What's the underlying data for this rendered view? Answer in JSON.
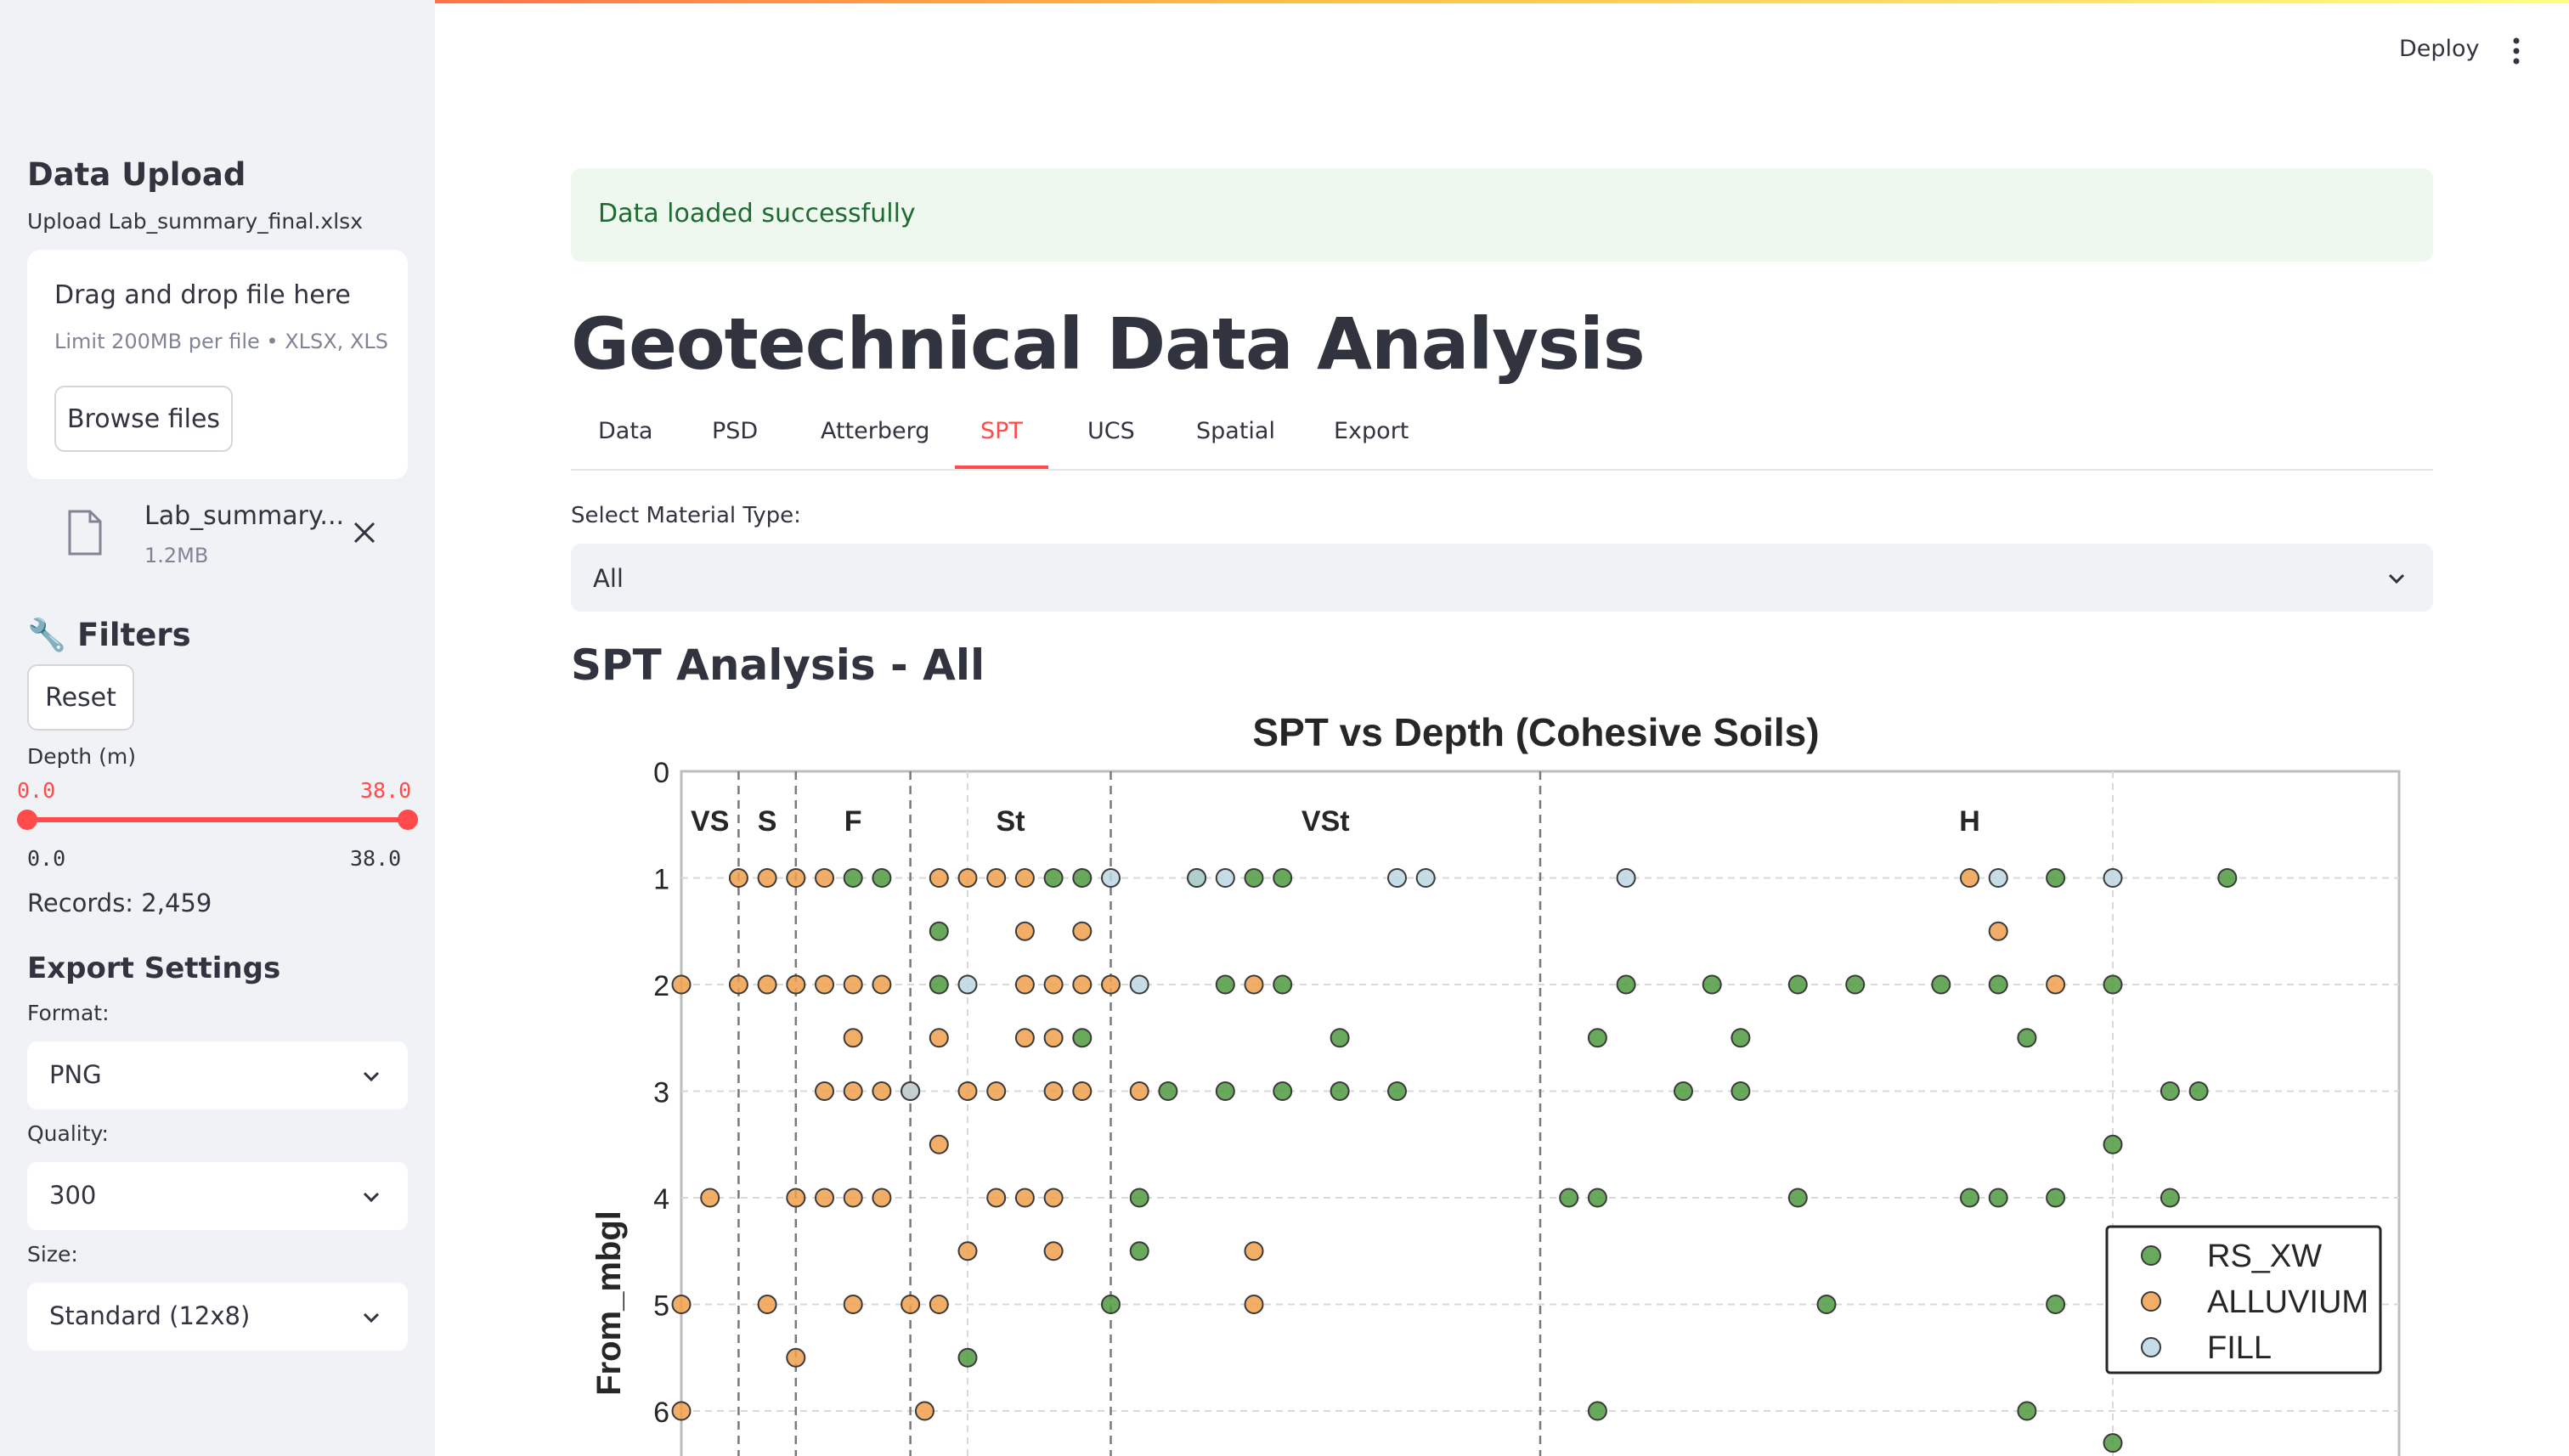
{
  "sidebar": {
    "upload_title": "Data Upload",
    "upload_label": "Upload Lab_summary_final.xlsx",
    "dropzone_title": "Drag and drop file here",
    "dropzone_limit": "Limit 200MB per file • XLSX, XLS",
    "browse_label": "Browse files",
    "file_name": "Lab_summary...",
    "file_size": "1.2MB",
    "filters_title": "🔧 Filters",
    "reset_label": "Reset",
    "depth_label": "Depth (m)",
    "depth_min_value": "0.0",
    "depth_max_value": "38.0",
    "depth_min_tick": "0.0",
    "depth_max_tick": "38.0",
    "records": "Records: 2,459",
    "export_title": "Export Settings",
    "format_label": "Format:",
    "format_value": "PNG",
    "quality_label": "Quality:",
    "quality_value": "300",
    "size_label": "Size:",
    "size_value": "Standard (12x8)"
  },
  "header": {
    "deploy_label": "Deploy"
  },
  "main": {
    "alert": "Data loaded successfully",
    "title": "Geotechnical Data Analysis",
    "tabs": [
      "Data",
      "PSD",
      "Atterberg",
      "SPT",
      "UCS",
      "Spatial",
      "Export"
    ],
    "active_tab": "SPT",
    "material_label": "Select Material Type:",
    "material_value": "All",
    "section_title": "SPT Analysis - All"
  },
  "colors": {
    "accent": "#ff4b4b",
    "success_bg": "#eef8ef",
    "success_text": "#1f6a32"
  },
  "chart_data": {
    "type": "scatter",
    "title": "SPT vs Depth (Cohesive Soils)",
    "ylabel": "From_mbgl",
    "xlabel": "",
    "y_ticks": [
      0,
      1,
      2,
      3,
      4,
      5,
      6
    ],
    "ylim": [
      0,
      6.4
    ],
    "y_inverted": true,
    "x_range": [
      0,
      60
    ],
    "zones": [
      {
        "label": "VS",
        "from": 0,
        "to": 2
      },
      {
        "label": "S",
        "from": 2,
        "to": 4
      },
      {
        "label": "F",
        "from": 4,
        "to": 8
      },
      {
        "label": "St",
        "from": 8,
        "to": 15
      },
      {
        "label": "VSt",
        "from": 15,
        "to": 30
      },
      {
        "label": "H",
        "from": 30,
        "to": 60
      }
    ],
    "extra_gridlines_x": [
      10,
      50
    ],
    "legend_position": "right",
    "series": [
      {
        "name": "RS_XW",
        "color": "#4f9a3f",
        "points": [
          [
            6,
            1
          ],
          [
            7,
            1
          ],
          [
            13,
            1
          ],
          [
            14,
            1
          ],
          [
            18,
            1
          ],
          [
            20,
            1
          ],
          [
            21,
            1
          ],
          [
            48,
            1
          ],
          [
            54,
            1
          ],
          [
            9,
            1.5
          ],
          [
            9,
            2
          ],
          [
            19,
            2
          ],
          [
            21,
            2
          ],
          [
            33,
            2
          ],
          [
            36,
            2
          ],
          [
            39,
            2
          ],
          [
            41,
            2
          ],
          [
            44,
            2
          ],
          [
            46,
            2
          ],
          [
            50,
            2
          ],
          [
            14,
            2.5
          ],
          [
            23,
            2.5
          ],
          [
            32,
            2.5
          ],
          [
            37,
            2.5
          ],
          [
            47,
            2.5
          ],
          [
            17,
            3
          ],
          [
            19,
            3
          ],
          [
            21,
            3
          ],
          [
            23,
            3
          ],
          [
            25,
            3
          ],
          [
            35,
            3
          ],
          [
            37,
            3
          ],
          [
            52,
            3
          ],
          [
            53,
            3
          ],
          [
            16,
            4
          ],
          [
            31,
            4
          ],
          [
            32,
            4
          ],
          [
            39,
            4
          ],
          [
            45,
            4
          ],
          [
            46,
            4
          ],
          [
            48,
            4
          ],
          [
            52,
            4
          ],
          [
            16,
            4.5
          ],
          [
            15,
            5
          ],
          [
            40,
            5
          ],
          [
            48,
            5
          ],
          [
            10,
            5.5
          ],
          [
            32,
            6
          ],
          [
            47,
            6
          ],
          [
            50,
            3.5
          ],
          [
            50,
            6.3
          ]
        ]
      },
      {
        "name": "ALLUVIUM",
        "color": "#f0a04b",
        "points": [
          [
            2,
            1
          ],
          [
            3,
            1
          ],
          [
            4,
            1
          ],
          [
            5,
            1
          ],
          [
            9,
            1
          ],
          [
            10,
            1
          ],
          [
            11,
            1
          ],
          [
            12,
            1
          ],
          [
            45,
            1
          ],
          [
            12,
            1.5
          ],
          [
            14,
            1.5
          ],
          [
            46,
            1.5
          ],
          [
            0,
            2
          ],
          [
            2,
            2
          ],
          [
            3,
            2
          ],
          [
            4,
            2
          ],
          [
            5,
            2
          ],
          [
            6,
            2
          ],
          [
            7,
            2
          ],
          [
            12,
            2
          ],
          [
            13,
            2
          ],
          [
            14,
            2
          ],
          [
            15,
            2
          ],
          [
            20,
            2
          ],
          [
            48,
            2
          ],
          [
            6,
            2.5
          ],
          [
            9,
            2.5
          ],
          [
            12,
            2.5
          ],
          [
            13,
            2.5
          ],
          [
            5,
            3
          ],
          [
            6,
            3
          ],
          [
            7,
            3
          ],
          [
            8,
            3
          ],
          [
            10,
            3
          ],
          [
            11,
            3
          ],
          [
            13,
            3
          ],
          [
            14,
            3
          ],
          [
            16,
            3
          ],
          [
            9,
            3.5
          ],
          [
            1,
            4
          ],
          [
            4,
            4
          ],
          [
            5,
            4
          ],
          [
            6,
            4
          ],
          [
            7,
            4
          ],
          [
            11,
            4
          ],
          [
            12,
            4
          ],
          [
            13,
            4
          ],
          [
            10,
            4.5
          ],
          [
            13,
            4.5
          ],
          [
            20,
            4.5
          ],
          [
            0,
            5
          ],
          [
            3,
            5
          ],
          [
            6,
            5
          ],
          [
            8,
            5
          ],
          [
            9,
            5
          ],
          [
            20,
            5
          ],
          [
            4,
            5.5
          ],
          [
            0,
            6
          ],
          [
            8.5,
            6
          ]
        ]
      },
      {
        "name": "FILL",
        "color": "#bcd6e3",
        "points": [
          [
            15,
            1
          ],
          [
            18,
            1
          ],
          [
            19,
            1
          ],
          [
            25,
            1
          ],
          [
            26,
            1
          ],
          [
            33,
            1
          ],
          [
            46,
            1
          ],
          [
            50,
            1
          ],
          [
            10,
            2
          ],
          [
            16,
            2
          ],
          [
            8,
            3
          ]
        ]
      }
    ]
  }
}
